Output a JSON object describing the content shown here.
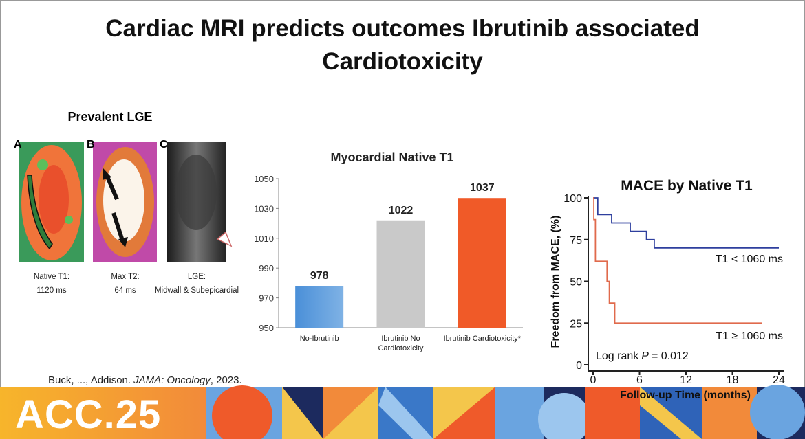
{
  "slide_title": "Cardiac MRI predicts outcomes Ibrutinib associated Cardiotoxicity",
  "panel_heading": "Prevalent LGE",
  "panels": [
    {
      "letter": "A",
      "caption": [
        "Native T1:",
        "1120 ms"
      ]
    },
    {
      "letter": "B",
      "caption": [
        "Max T2:",
        "64 ms"
      ]
    },
    {
      "letter": "C",
      "caption": [
        "LGE:",
        "Midwall & Subepicardial"
      ]
    }
  ],
  "citation": {
    "authors": "Buck, ..., Addison.",
    "journal": "JAMA: Oncology",
    "year": ", 2023."
  },
  "banner": "ACC.25",
  "chart_data": [
    {
      "type": "bar",
      "title": "Myocardial Native T1",
      "categories": [
        "No-Ibrutinib",
        "Ibrutinib No Cardiotoxicity",
        "Ibrutinib Cardiotoxicity*"
      ],
      "values": [
        978,
        1022,
        1037
      ],
      "colors": [
        "#5b9bd5",
        "#c9c9c9",
        "#f05a28"
      ],
      "ylim": [
        950,
        1050
      ],
      "yticks": [
        950,
        970,
        990,
        1010,
        1030,
        1050
      ],
      "grid": false
    },
    {
      "type": "line",
      "title": "MACE by Native T1",
      "xlabel": "Follow-up Time (months)",
      "ylabel": "Freedom from MACE, (%)",
      "xlim": [
        0,
        24
      ],
      "ylim": [
        0,
        100
      ],
      "xticks": [
        0,
        6,
        12,
        18,
        24
      ],
      "yticks": [
        0,
        25,
        50,
        75,
        100
      ],
      "grid": false,
      "series": [
        {
          "name": "T1 < 1060 ms",
          "color": "#2e3f9e",
          "x": [
            0,
            0.6,
            0.6,
            2.4,
            2.4,
            4.8,
            4.8,
            6.9,
            6.9,
            7.9,
            7.9,
            24
          ],
          "values": [
            100,
            100,
            90,
            90,
            85,
            85,
            80,
            80,
            75,
            75,
            70,
            70
          ]
        },
        {
          "name": "T1 ≥ 1060 ms",
          "color": "#e06a4c",
          "x": [
            0,
            0.1,
            0.1,
            0.3,
            0.3,
            1.8,
            1.8,
            2.1,
            2.1,
            2.8,
            2.8,
            21.8
          ],
          "values": [
            100,
            100,
            87,
            87,
            62,
            62,
            50,
            50,
            37,
            37,
            25,
            25
          ]
        }
      ],
      "annotation": [
        "Log rank",
        "P",
        "= 0.012"
      ]
    }
  ]
}
